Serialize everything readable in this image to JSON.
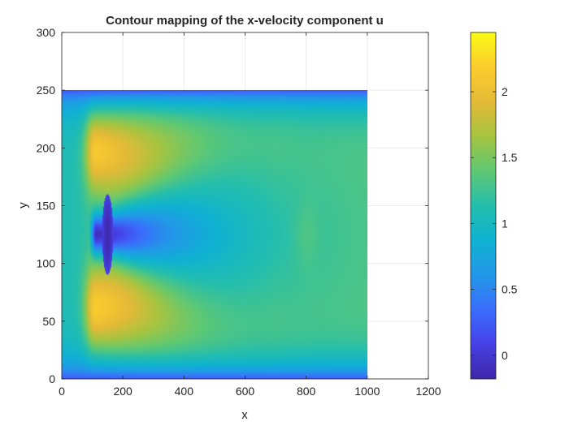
{
  "chart_data": {
    "type": "heatmap",
    "title": "Contour mapping of the x-velocity component u",
    "xlabel": "x",
    "ylabel": "y",
    "xlim": [
      0,
      1200
    ],
    "ylim": [
      0,
      300
    ],
    "xticks": [
      0,
      200,
      400,
      600,
      800,
      1000,
      1200
    ],
    "yticks": [
      0,
      50,
      100,
      150,
      200,
      250,
      300
    ],
    "grid": true,
    "colormap": "parula",
    "field_extent": {
      "x": [
        0,
        1000
      ],
      "y": [
        0,
        250
      ]
    },
    "colorbar": {
      "limits": [
        -0.18,
        2.45
      ],
      "ticks": [
        0,
        0.5,
        1,
        1.5,
        2
      ],
      "tick_labels": [
        "0",
        "0.5",
        "1",
        "1.5",
        "2"
      ]
    },
    "field_features": {
      "wall_value": 0.2,
      "free_stream_value": 1.45,
      "obstacle": {
        "x": 150,
        "y": 125,
        "y_half_height": 35,
        "core_value": -0.15
      },
      "jets": [
        {
          "y": 200,
          "x_peak": 160,
          "peak_value": 2.45
        },
        {
          "y": 60,
          "x_peak": 160,
          "peak_value": 2.45
        }
      ],
      "downstream_patch": {
        "x": 800,
        "y": 125,
        "value": 1.6
      }
    }
  },
  "colors": {
    "axes_line": "#262626",
    "grid": "#ebebeb",
    "background": "#ffffff"
  }
}
